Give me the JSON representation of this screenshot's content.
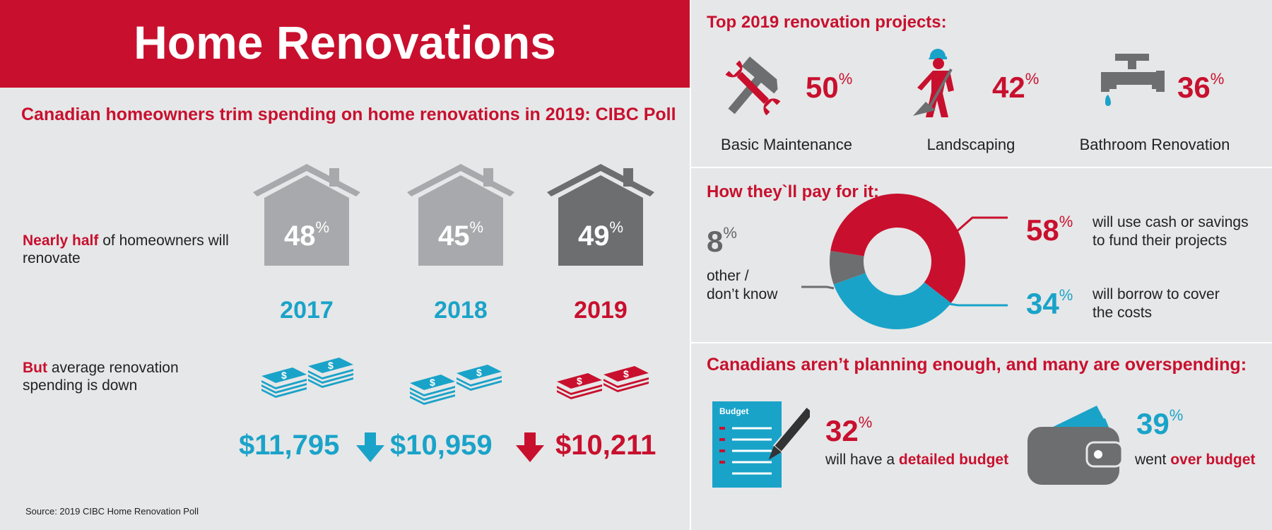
{
  "title": "Home Renovations",
  "left": {
    "subtitle": "Canadian homeowners trim spending on home renovations in 2019: CIBC Poll",
    "row1_lead": "Nearly half",
    "row1_rest": " of homeowners will renovate",
    "row2_lead": "But",
    "row2_rest": " average renovation spending is down",
    "years": [
      {
        "pct": "48",
        "year": "2017",
        "amount": "$11,795"
      },
      {
        "pct": "45",
        "year": "2018",
        "amount": "$10,959"
      },
      {
        "pct": "49",
        "year": "2019",
        "amount": "$10,211"
      }
    ],
    "pct_sign": "%",
    "source": "Source: 2019 CIBC Home Renovation Poll"
  },
  "projects": {
    "heading": "Top 2019 renovation projects:",
    "items": [
      {
        "pct": "50",
        "label": "Basic Maintenance",
        "icon": "hammer-wrench-icon"
      },
      {
        "pct": "42",
        "label": "Landscaping",
        "icon": "worker-shovel-icon"
      },
      {
        "pct": "36",
        "label": "Bathroom Renovation",
        "icon": "faucet-icon"
      }
    ]
  },
  "pay": {
    "heading": "How they`ll pay for it:",
    "other_pct": "8",
    "other_label_1": "other /",
    "other_label_2": "don’t know",
    "cash_pct": "58",
    "cash_label_1": "will use cash or savings",
    "cash_label_2": "to fund their projects",
    "borrow_pct": "34",
    "borrow_label_1": "will borrow to cover",
    "borrow_label_2": "the costs"
  },
  "planning": {
    "heading": "Canadians aren’t planning enough, and many are overspending:",
    "budget_doc_label": "Budget",
    "budget_pct": "32",
    "budget_pre": "will have a ",
    "budget_bold": "detailed budget",
    "over_pct": "39",
    "over_pre": "went ",
    "over_bold": "over budget"
  },
  "chart_data": {
    "type": "pie",
    "categories": [
      "will use cash or savings to fund their projects",
      "will borrow to cover the costs",
      "other / don’t know"
    ],
    "values": [
      58,
      34,
      8
    ],
    "colors": [
      "#c8102e",
      "#1aa3c9",
      "#6d6e70"
    ]
  },
  "colors": {
    "red": "#c8102e",
    "blue": "#1aa3c9",
    "dark_grey": "#6d6e70",
    "light_grey": "#a7a9ac",
    "background": "#e6e7e8"
  }
}
